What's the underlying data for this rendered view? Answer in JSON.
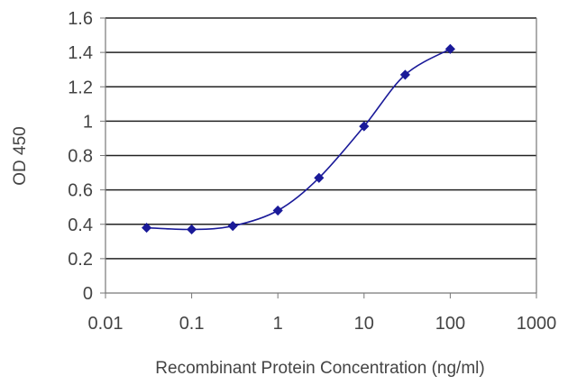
{
  "chart_data": {
    "type": "line",
    "title": "",
    "xlabel": "Recombinant Protein Concentration (ng/ml)",
    "ylabel": "OD 450",
    "x_scale": "log",
    "xlim": [
      0.01,
      1000
    ],
    "ylim": [
      0,
      1.6
    ],
    "x_ticks": [
      "0.01",
      "0.1",
      "1",
      "10",
      "100",
      "1000"
    ],
    "y_ticks": [
      "0",
      "0.2",
      "0.4",
      "0.6",
      "0.8",
      "1",
      "1.2",
      "1.4",
      "1.6"
    ],
    "grid": "horizontal",
    "legend": "none",
    "series": [
      {
        "x": [
          0.03,
          0.1,
          0.3,
          1,
          3,
          10,
          30,
          100
        ],
        "y": [
          0.38,
          0.37,
          0.39,
          0.48,
          0.67,
          0.97,
          1.27,
          1.42
        ]
      }
    ],
    "colors": {
      "series": "#1a1a99",
      "grid": "#222222",
      "axis": "#777777"
    }
  }
}
